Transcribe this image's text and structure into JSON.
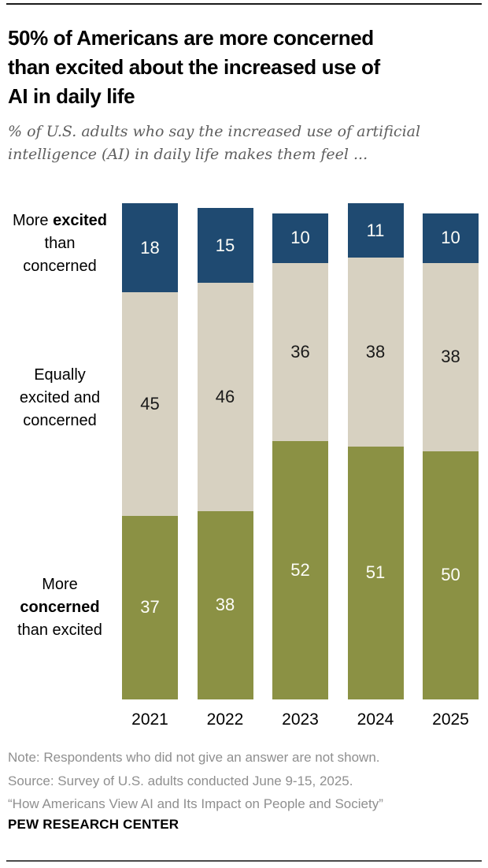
{
  "header": {
    "title_lines": [
      "50% of Americans are more concerned",
      "than excited about the increased use of",
      "AI in daily life"
    ],
    "subtitle_lines": [
      "% of U.S. adults who say the increased use of artificial",
      "intelligence (AI) in daily life makes them feel ..."
    ]
  },
  "chart_data": {
    "type": "bar",
    "stacked": true,
    "unit": "percent of U.S. adults",
    "grid": false,
    "ylim": [
      0,
      100
    ],
    "legend_position": "left-axis",
    "categories": [
      "2021",
      "2022",
      "2023",
      "2024",
      "2025"
    ],
    "series": [
      {
        "key": "more-excited",
        "name": "More excited than concerned",
        "color": "#1f4a71",
        "label_color": "#fdfdf8",
        "values": [
          18,
          15,
          10,
          11,
          10
        ]
      },
      {
        "key": "equally",
        "name": "Equally excited and concerned",
        "color": "#d7d1c1",
        "label_color": "#1a1a1a",
        "values": [
          45,
          46,
          36,
          38,
          38
        ]
      },
      {
        "key": "more-concerned",
        "name": "More concerned than excited",
        "color": "#8b9144",
        "label_color": "#fdfdf8",
        "values": [
          37,
          38,
          52,
          51,
          50
        ]
      }
    ],
    "axis_labels": [
      {
        "lines": [
          "More **excited**",
          "than",
          "concerned"
        ]
      },
      {
        "lines": [
          "Equally",
          "excited and",
          "concerned"
        ]
      },
      {
        "lines": [
          "More",
          "**concerned**",
          "than excited"
        ]
      }
    ]
  },
  "footer": {
    "note": "Note: Respondents who did not give an answer are not shown.",
    "source": "Source: Survey of U.S. adults conducted June 9-15, 2025.",
    "quote": "“How Americans View AI and Its Impact on People and Society”",
    "brand": "PEW RESEARCH CENTER"
  }
}
